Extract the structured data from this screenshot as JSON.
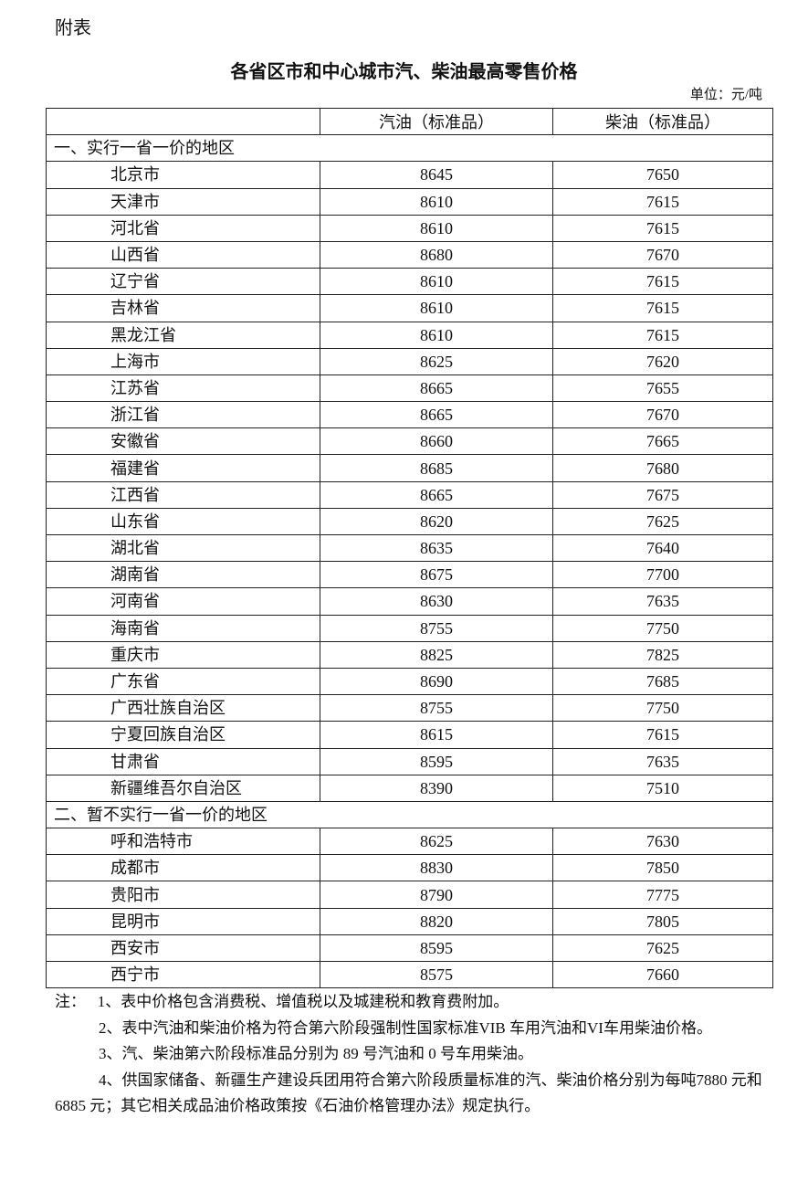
{
  "attachment_label": "附表",
  "title": "各省区市和中心城市汽、柴油最高零售价格",
  "unit": "单位：元/吨",
  "table": {
    "headers": [
      "",
      "汽油（标准品）",
      "柴油（标准品）"
    ],
    "sections": [
      {
        "label": "一、实行一省一价的地区",
        "rows": [
          {
            "region": "北京市",
            "gasoline": "8645",
            "diesel": "7650"
          },
          {
            "region": "天津市",
            "gasoline": "8610",
            "diesel": "7615"
          },
          {
            "region": "河北省",
            "gasoline": "8610",
            "diesel": "7615"
          },
          {
            "region": "山西省",
            "gasoline": "8680",
            "diesel": "7670"
          },
          {
            "region": "辽宁省",
            "gasoline": "8610",
            "diesel": "7615"
          },
          {
            "region": "吉林省",
            "gasoline": "8610",
            "diesel": "7615"
          },
          {
            "region": "黑龙江省",
            "gasoline": "8610",
            "diesel": "7615"
          },
          {
            "region": "上海市",
            "gasoline": "8625",
            "diesel": "7620"
          },
          {
            "region": "江苏省",
            "gasoline": "8665",
            "diesel": "7655"
          },
          {
            "region": "浙江省",
            "gasoline": "8665",
            "diesel": "7670"
          },
          {
            "region": "安徽省",
            "gasoline": "8660",
            "diesel": "7665"
          },
          {
            "region": "福建省",
            "gasoline": "8685",
            "diesel": "7680"
          },
          {
            "region": "江西省",
            "gasoline": "8665",
            "diesel": "7675"
          },
          {
            "region": "山东省",
            "gasoline": "8620",
            "diesel": "7625"
          },
          {
            "region": "湖北省",
            "gasoline": "8635",
            "diesel": "7640"
          },
          {
            "region": "湖南省",
            "gasoline": "8675",
            "diesel": "7700"
          },
          {
            "region": "河南省",
            "gasoline": "8630",
            "diesel": "7635"
          },
          {
            "region": "海南省",
            "gasoline": "8755",
            "diesel": "7750"
          },
          {
            "region": "重庆市",
            "gasoline": "8825",
            "diesel": "7825"
          },
          {
            "region": "广东省",
            "gasoline": "8690",
            "diesel": "7685"
          },
          {
            "region": "广西壮族自治区",
            "gasoline": "8755",
            "diesel": "7750"
          },
          {
            "region": "宁夏回族自治区",
            "gasoline": "8615",
            "diesel": "7615"
          },
          {
            "region": "甘肃省",
            "gasoline": "8595",
            "diesel": "7635"
          },
          {
            "region": "新疆维吾尔自治区",
            "gasoline": "8390",
            "diesel": "7510"
          }
        ]
      },
      {
        "label": "二、暂不实行一省一价的地区",
        "rows": [
          {
            "region": "呼和浩特市",
            "gasoline": "8625",
            "diesel": "7630"
          },
          {
            "region": "成都市",
            "gasoline": "8830",
            "diesel": "7850"
          },
          {
            "region": "贵阳市",
            "gasoline": "8790",
            "diesel": "7775"
          },
          {
            "region": "昆明市",
            "gasoline": "8820",
            "diesel": "7805"
          },
          {
            "region": "西安市",
            "gasoline": "8595",
            "diesel": "7625"
          },
          {
            "region": "西宁市",
            "gasoline": "8575",
            "diesel": "7660"
          }
        ]
      }
    ]
  },
  "notes": {
    "prefix": "注：",
    "items": [
      "1、表中价格包含消费税、增值税以及城建税和教育费附加。",
      "2、表中汽油和柴油价格为符合第六阶段强制性国家标准VIB 车用汽油和VI车用柴油价格。",
      "3、汽、柴油第六阶段标准品分别为 89 号汽油和 0 号车用柴油。",
      "4、供国家储备、新疆生产建设兵团用符合第六阶段质量标准的汽、柴油价格分别为每吨7880 元和 6885 元；其它相关成品油价格政策按《石油价格管理办法》规定执行。"
    ]
  }
}
